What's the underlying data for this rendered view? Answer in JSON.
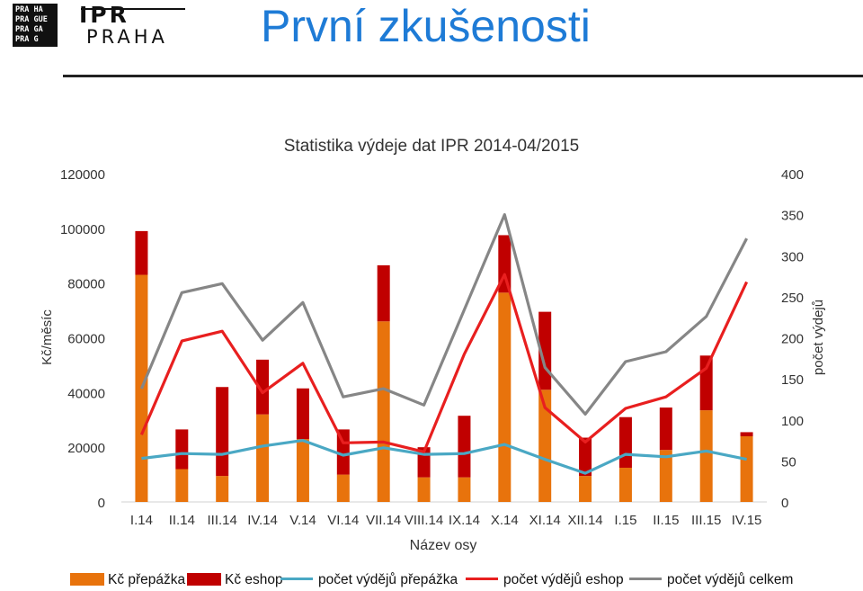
{
  "header": {
    "logo_box_lines": [
      "PRA HA",
      "PRA GUE",
      "PRA GA",
      "PRA G"
    ],
    "logo_ipr": "IPR",
    "logo_praha": "PRAHA",
    "title": "První zkušenosti"
  },
  "chart_data": {
    "type": "bar",
    "title": "Statistika výdeje dat IPR 2014-04/2015",
    "xlabel": "Název osy",
    "ylabel": "Kč/měsíc",
    "y2label": "počet výdejů",
    "ylim": [
      0,
      120000
    ],
    "y2lim": [
      0,
      400
    ],
    "yticks": [
      "0",
      "20000",
      "40000",
      "60000",
      "80000",
      "100000",
      "120000"
    ],
    "y2ticks": [
      "0",
      "50",
      "100",
      "150",
      "200",
      "250",
      "300",
      "350",
      "400"
    ],
    "categories": [
      "I.14",
      "II.14",
      "III.14",
      "IV.14",
      "V.14",
      "VI.14",
      "VII.14",
      "VIII.14",
      "IX.14",
      "X.14",
      "XI.14",
      "XII.14",
      "I.15",
      "II.15",
      "III.15",
      "IV.15"
    ],
    "stacked_bars": [
      {
        "name": "Kč přepážka",
        "color": "#e8730c",
        "values": [
          83000,
          12000,
          9500,
          32000,
          23000,
          10000,
          66000,
          9000,
          9000,
          76500,
          41000,
          9500,
          12500,
          19000,
          33500,
          24000
        ]
      },
      {
        "name": "Kč eshop",
        "color": "#c00000",
        "values": [
          16000,
          14500,
          32500,
          20000,
          18500,
          16500,
          20500,
          11000,
          22500,
          21000,
          28500,
          14000,
          18500,
          15500,
          20000,
          1500
        ]
      }
    ],
    "lines": [
      {
        "name": "počet výdějů přepážka",
        "color": "#4aa8c4",
        "axis": "y2",
        "values": [
          53,
          59,
          58,
          68,
          75,
          57,
          66,
          58,
          59,
          70,
          52,
          35,
          58,
          55,
          62,
          52
        ]
      },
      {
        "name": "počet výdějů eshop",
        "color": "#e81f1f",
        "axis": "y2",
        "values": [
          82,
          196,
          208,
          133,
          169,
          72,
          73,
          61,
          180,
          277,
          115,
          73,
          114,
          128,
          163,
          268
        ]
      },
      {
        "name": "počet výdějů celkem",
        "color": "#868686",
        "axis": "y2",
        "values": [
          138,
          255,
          266,
          197,
          243,
          128,
          138,
          118,
          234,
          350,
          164,
          107,
          171,
          183,
          226,
          321
        ]
      }
    ],
    "grid": false,
    "legend": "bottom"
  }
}
